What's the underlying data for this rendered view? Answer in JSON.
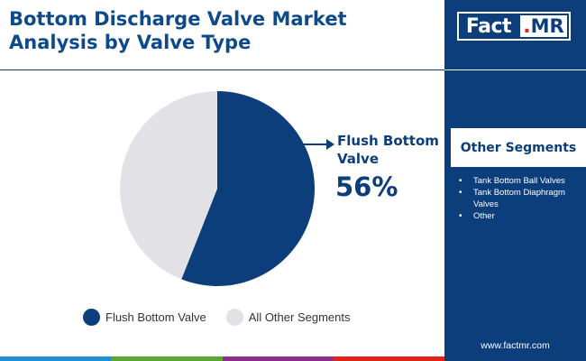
{
  "header": {
    "title_line1": "Bottom Discharge Valve Market",
    "title_line2": "Analysis by Valve Type"
  },
  "logo": {
    "left": "Fact",
    "dot": ".",
    "right": "MR"
  },
  "sidebar": {
    "other_title": "Other Segments",
    "segments": [
      "Tank Bottom Ball Valves",
      "Tank Bottom Diaphragm Valves",
      "Other"
    ],
    "website": "www.factmr.com"
  },
  "colors": {
    "primary": "#0b3e7a",
    "other": "#e2e2e6",
    "bottom_bar": [
      "#1e8fd6",
      "#5aa832",
      "#8b2f8b",
      "#e2231a"
    ]
  },
  "chart_data": {
    "type": "pie",
    "slices": [
      {
        "label": "Flush Bottom Valve",
        "value": 56,
        "color": "#0b3e7a"
      },
      {
        "label": "All Other Segments",
        "value": 44,
        "color": "#e2e2e6"
      }
    ],
    "highlight": {
      "label": "Flush Bottom Valve",
      "value_text": "56%"
    },
    "legend": [
      "Flush Bottom Valve",
      "All Other Segments"
    ],
    "legend_position": "bottom"
  }
}
